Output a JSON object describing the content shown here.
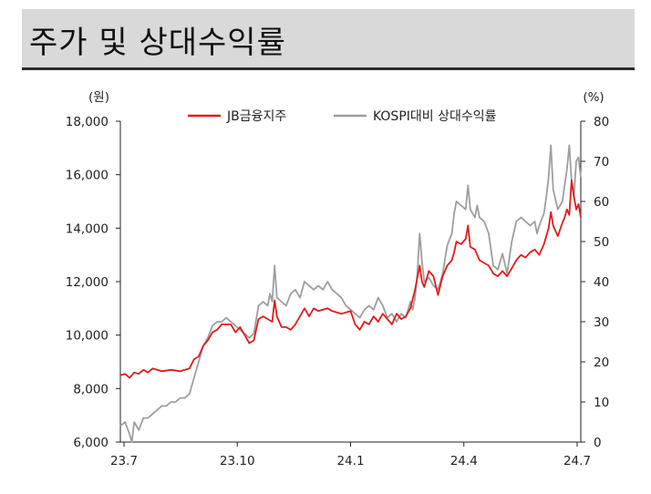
{
  "page_title": "주가 및 상대수익률",
  "chart_data": {
    "type": "line",
    "title": "주가 및 상대수익률",
    "left_unit": "(원)",
    "right_unit": "(%)",
    "x_labels": [
      "23.7",
      "23.10",
      "24.1",
      "24.4",
      "24.7"
    ],
    "left_axis": {
      "min": 6000,
      "max": 18000,
      "ticks": [
        6000,
        8000,
        10000,
        12000,
        14000,
        16000,
        18000
      ],
      "tick_labels": [
        "6,000",
        "8,000",
        "10,000",
        "12,000",
        "14,000",
        "16,000",
        "18,000"
      ]
    },
    "right_axis": {
      "min": 0,
      "max": 80,
      "ticks": [
        0,
        10,
        20,
        30,
        40,
        50,
        60,
        70,
        80
      ],
      "tick_labels": [
        "0",
        "10",
        "20",
        "30",
        "40",
        "50",
        "60",
        "70",
        "80"
      ]
    },
    "legend": "top",
    "grid": false,
    "series": [
      {
        "name": "JB금융지주",
        "axis": "left",
        "color": "#e31b1b",
        "points": [
          [
            0.0,
            8500
          ],
          [
            0.01,
            8550
          ],
          [
            0.02,
            8400
          ],
          [
            0.03,
            8600
          ],
          [
            0.04,
            8550
          ],
          [
            0.05,
            8700
          ],
          [
            0.06,
            8600
          ],
          [
            0.07,
            8750
          ],
          [
            0.09,
            8650
          ],
          [
            0.11,
            8700
          ],
          [
            0.13,
            8650
          ],
          [
            0.15,
            8750
          ],
          [
            0.16,
            9100
          ],
          [
            0.17,
            9200
          ],
          [
            0.18,
            9600
          ],
          [
            0.19,
            9800
          ],
          [
            0.2,
            10100
          ],
          [
            0.21,
            10200
          ],
          [
            0.22,
            10400
          ],
          [
            0.24,
            10400
          ],
          [
            0.25,
            10100
          ],
          [
            0.26,
            10300
          ],
          [
            0.27,
            10000
          ],
          [
            0.28,
            9700
          ],
          [
            0.29,
            9800
          ],
          [
            0.3,
            10600
          ],
          [
            0.31,
            10700
          ],
          [
            0.32,
            10600
          ],
          [
            0.33,
            10500
          ],
          [
            0.335,
            11300
          ],
          [
            0.34,
            10700
          ],
          [
            0.35,
            10300
          ],
          [
            0.36,
            10300
          ],
          [
            0.37,
            10200
          ],
          [
            0.38,
            10400
          ],
          [
            0.4,
            11000
          ],
          [
            0.41,
            10700
          ],
          [
            0.42,
            11000
          ],
          [
            0.43,
            10900
          ],
          [
            0.45,
            11000
          ],
          [
            0.46,
            10900
          ],
          [
            0.48,
            10800
          ],
          [
            0.5,
            10900
          ],
          [
            0.51,
            10400
          ],
          [
            0.52,
            10200
          ],
          [
            0.53,
            10500
          ],
          [
            0.54,
            10400
          ],
          [
            0.55,
            10700
          ],
          [
            0.56,
            10500
          ],
          [
            0.57,
            10800
          ],
          [
            0.58,
            10600
          ],
          [
            0.59,
            10400
          ],
          [
            0.6,
            10800
          ],
          [
            0.61,
            10600
          ],
          [
            0.62,
            10700
          ],
          [
            0.63,
            11000
          ],
          [
            0.64,
            11700
          ],
          [
            0.65,
            12600
          ],
          [
            0.655,
            12000
          ],
          [
            0.66,
            11800
          ],
          [
            0.67,
            12400
          ],
          [
            0.68,
            12200
          ],
          [
            0.69,
            11500
          ],
          [
            0.7,
            12200
          ],
          [
            0.71,
            12600
          ],
          [
            0.72,
            12800
          ],
          [
            0.725,
            13100
          ],
          [
            0.73,
            13500
          ],
          [
            0.74,
            13400
          ],
          [
            0.75,
            13600
          ],
          [
            0.755,
            14100
          ],
          [
            0.76,
            13300
          ],
          [
            0.77,
            13200
          ],
          [
            0.78,
            12800
          ],
          [
            0.79,
            12700
          ],
          [
            0.8,
            12600
          ],
          [
            0.81,
            12300
          ],
          [
            0.82,
            12200
          ],
          [
            0.83,
            12400
          ],
          [
            0.84,
            12200
          ],
          [
            0.85,
            12500
          ],
          [
            0.86,
            12800
          ],
          [
            0.87,
            13000
          ],
          [
            0.88,
            12900
          ],
          [
            0.89,
            13100
          ],
          [
            0.9,
            13200
          ],
          [
            0.91,
            13000
          ],
          [
            0.92,
            13400
          ],
          [
            0.93,
            14000
          ],
          [
            0.935,
            14600
          ],
          [
            0.94,
            14100
          ],
          [
            0.95,
            13700
          ],
          [
            0.96,
            14200
          ],
          [
            0.965,
            14400
          ],
          [
            0.97,
            14700
          ],
          [
            0.975,
            14500
          ],
          [
            0.98,
            15800
          ],
          [
            0.985,
            15200
          ],
          [
            0.99,
            14700
          ],
          [
            0.995,
            14900
          ],
          [
            1.0,
            14400
          ]
        ]
      },
      {
        "name": "KOSPI대비 상대수익률",
        "axis": "right",
        "color": "#9e9e9e",
        "points": [
          [
            0.0,
            4
          ],
          [
            0.01,
            5
          ],
          [
            0.02,
            2
          ],
          [
            0.025,
            0
          ],
          [
            0.03,
            5
          ],
          [
            0.04,
            3
          ],
          [
            0.05,
            6
          ],
          [
            0.06,
            6
          ],
          [
            0.07,
            7
          ],
          [
            0.08,
            8
          ],
          [
            0.09,
            9
          ],
          [
            0.1,
            9
          ],
          [
            0.11,
            10
          ],
          [
            0.12,
            10
          ],
          [
            0.13,
            11
          ],
          [
            0.14,
            11
          ],
          [
            0.15,
            12
          ],
          [
            0.16,
            16
          ],
          [
            0.17,
            20
          ],
          [
            0.18,
            24
          ],
          [
            0.19,
            26
          ],
          [
            0.2,
            29
          ],
          [
            0.21,
            30
          ],
          [
            0.22,
            30
          ],
          [
            0.23,
            31
          ],
          [
            0.24,
            30
          ],
          [
            0.25,
            29
          ],
          [
            0.26,
            28
          ],
          [
            0.27,
            27
          ],
          [
            0.28,
            26
          ],
          [
            0.29,
            27
          ],
          [
            0.3,
            34
          ],
          [
            0.31,
            35
          ],
          [
            0.32,
            34
          ],
          [
            0.325,
            37
          ],
          [
            0.33,
            35
          ],
          [
            0.335,
            44
          ],
          [
            0.34,
            36
          ],
          [
            0.35,
            35
          ],
          [
            0.36,
            34
          ],
          [
            0.37,
            37
          ],
          [
            0.38,
            38
          ],
          [
            0.39,
            36
          ],
          [
            0.4,
            40
          ],
          [
            0.41,
            39
          ],
          [
            0.42,
            38
          ],
          [
            0.43,
            39
          ],
          [
            0.44,
            38
          ],
          [
            0.45,
            40
          ],
          [
            0.46,
            38
          ],
          [
            0.47,
            37
          ],
          [
            0.48,
            36
          ],
          [
            0.49,
            34
          ],
          [
            0.5,
            33
          ],
          [
            0.51,
            32
          ],
          [
            0.52,
            31
          ],
          [
            0.53,
            33
          ],
          [
            0.54,
            34
          ],
          [
            0.55,
            33
          ],
          [
            0.56,
            36
          ],
          [
            0.57,
            34
          ],
          [
            0.58,
            31
          ],
          [
            0.59,
            32
          ],
          [
            0.6,
            30
          ],
          [
            0.61,
            32
          ],
          [
            0.62,
            31
          ],
          [
            0.63,
            35
          ],
          [
            0.635,
            33
          ],
          [
            0.64,
            36
          ],
          [
            0.645,
            42
          ],
          [
            0.65,
            52
          ],
          [
            0.655,
            45
          ],
          [
            0.66,
            40
          ],
          [
            0.67,
            41
          ],
          [
            0.68,
            39
          ],
          [
            0.69,
            38
          ],
          [
            0.7,
            42
          ],
          [
            0.71,
            49
          ],
          [
            0.72,
            52
          ],
          [
            0.725,
            57
          ],
          [
            0.73,
            60
          ],
          [
            0.74,
            59
          ],
          [
            0.75,
            58
          ],
          [
            0.755,
            64
          ],
          [
            0.76,
            58
          ],
          [
            0.77,
            56
          ],
          [
            0.775,
            59
          ],
          [
            0.78,
            56
          ],
          [
            0.79,
            55
          ],
          [
            0.8,
            52
          ],
          [
            0.81,
            44
          ],
          [
            0.82,
            43
          ],
          [
            0.83,
            47
          ],
          [
            0.84,
            42
          ],
          [
            0.85,
            50
          ],
          [
            0.86,
            55
          ],
          [
            0.87,
            56
          ],
          [
            0.88,
            55
          ],
          [
            0.89,
            54
          ],
          [
            0.9,
            55
          ],
          [
            0.905,
            52
          ],
          [
            0.91,
            54
          ],
          [
            0.92,
            57
          ],
          [
            0.925,
            61
          ],
          [
            0.93,
            66
          ],
          [
            0.935,
            74
          ],
          [
            0.94,
            63
          ],
          [
            0.95,
            58
          ],
          [
            0.96,
            60
          ],
          [
            0.965,
            64
          ],
          [
            0.97,
            68
          ],
          [
            0.975,
            74
          ],
          [
            0.98,
            65
          ],
          [
            0.985,
            61
          ],
          [
            0.99,
            70
          ],
          [
            0.995,
            71
          ],
          [
            1.0,
            66
          ]
        ]
      }
    ]
  }
}
